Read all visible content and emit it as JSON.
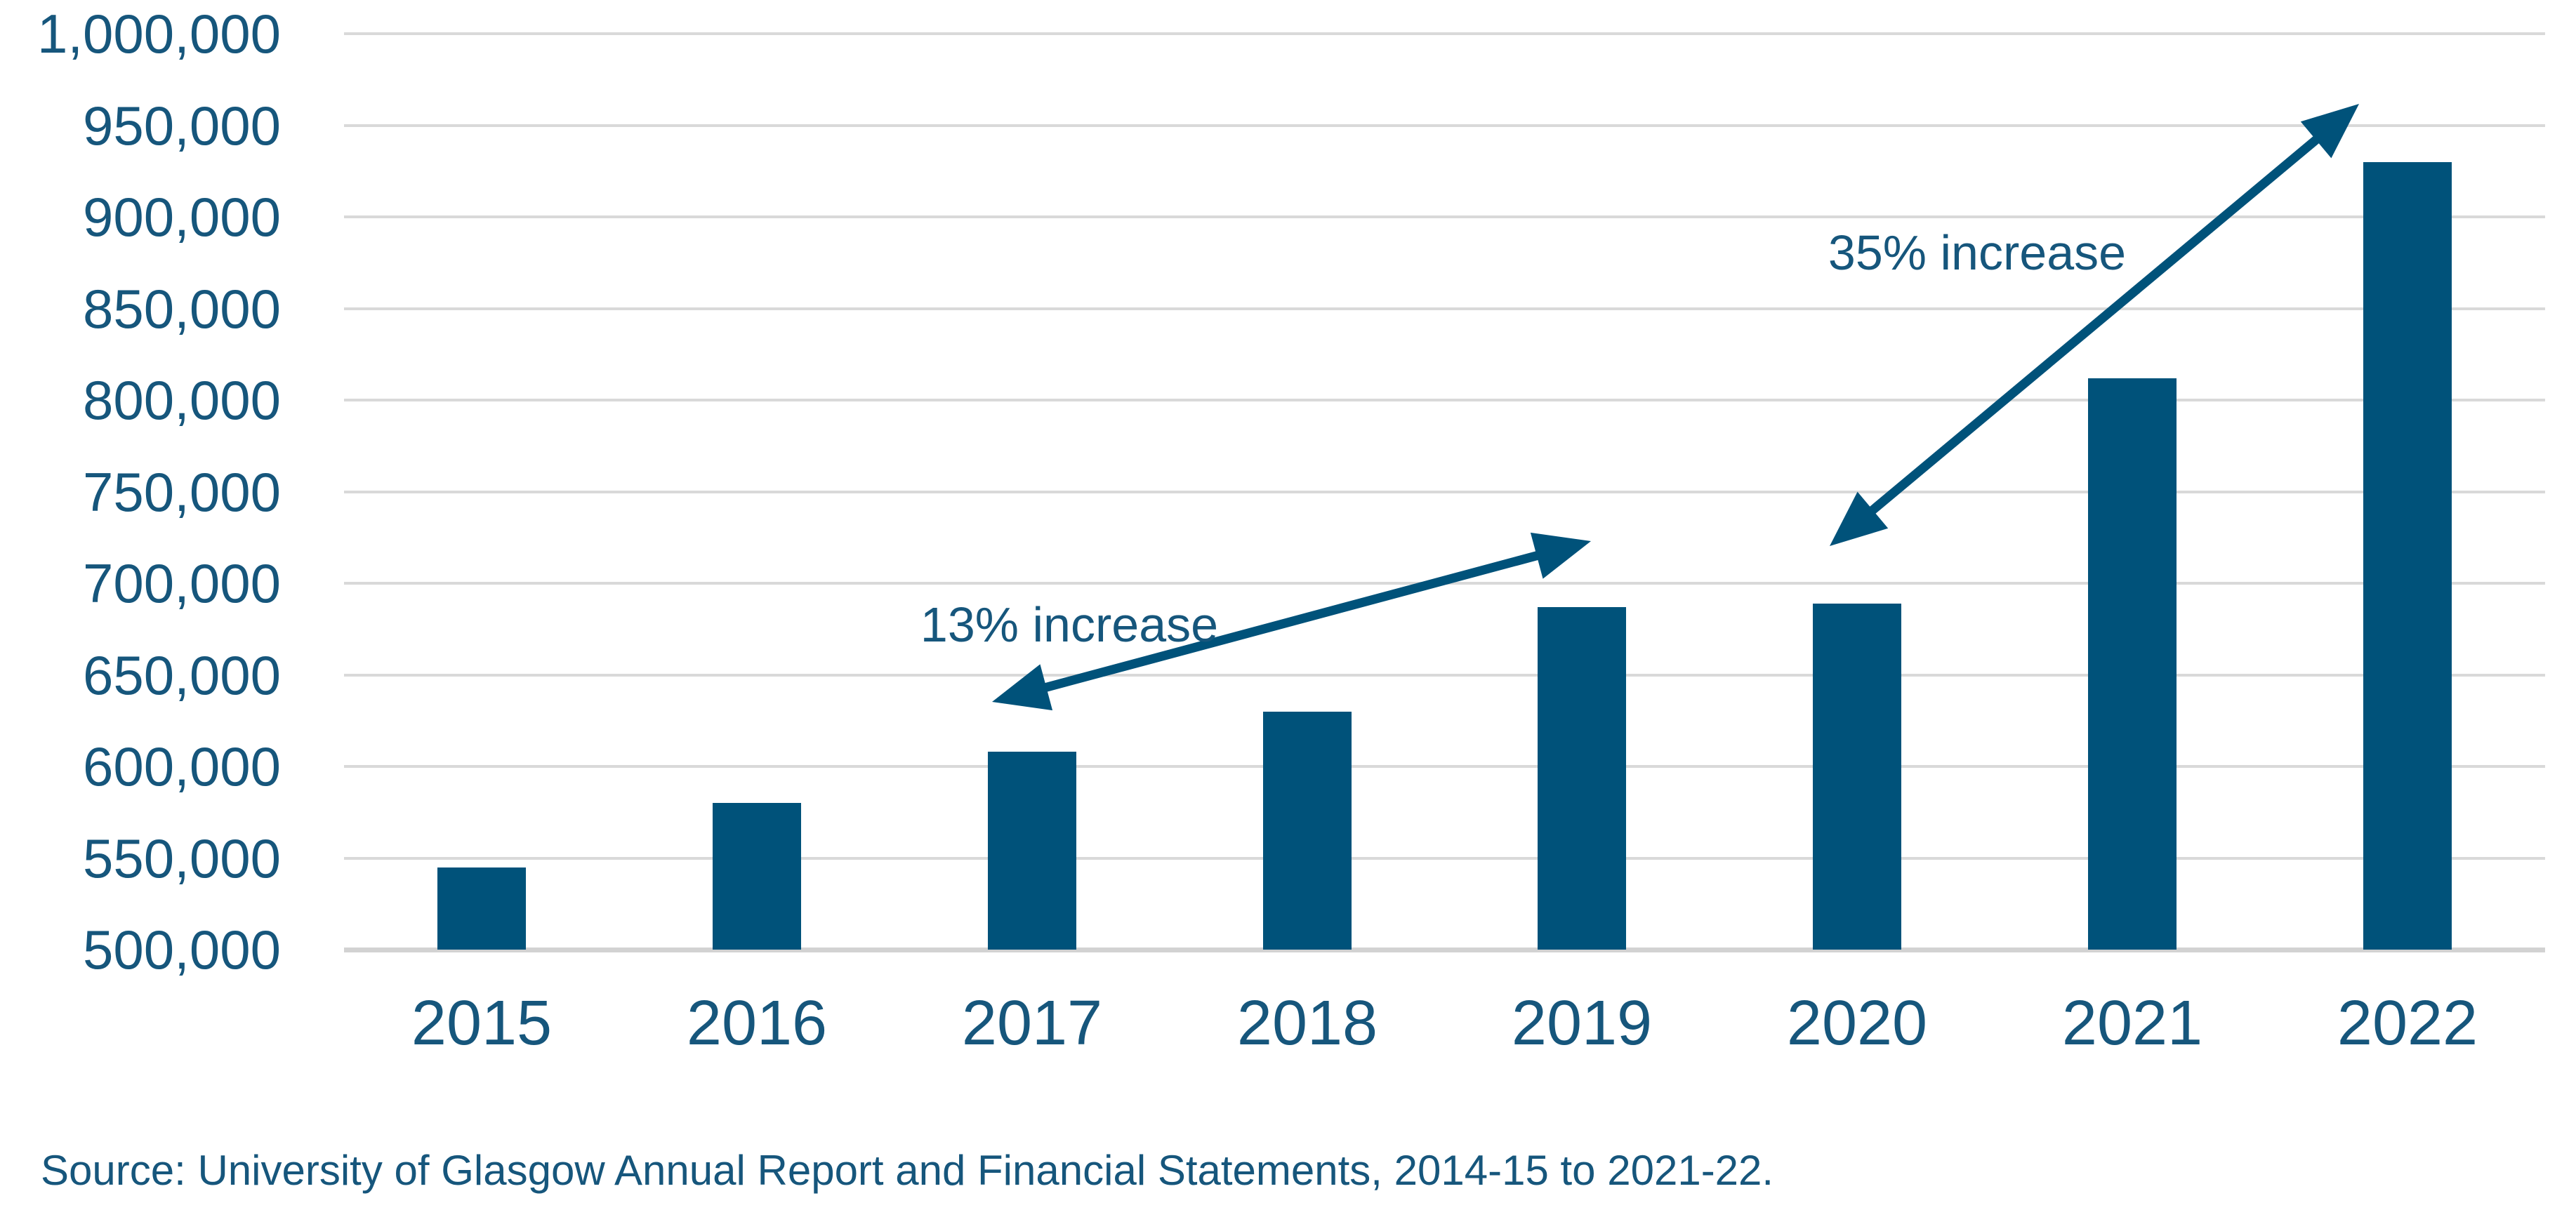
{
  "chart_data": {
    "type": "bar",
    "title": "",
    "categories": [
      "2015",
      "2016",
      "2017",
      "2018",
      "2019",
      "2020",
      "2021",
      "2022"
    ],
    "values": [
      545000,
      580000,
      608000,
      630000,
      687000,
      689000,
      812000,
      930000
    ],
    "xlabel": "",
    "ylabel": "",
    "ylim": [
      500000,
      1000000
    ],
    "ytick_step": 50000,
    "ytick_labels": [
      "500,000",
      "550,000",
      "600,000",
      "650,000",
      "700,000",
      "750,000",
      "800,000",
      "850,000",
      "900,000",
      "950,000",
      "1,000,000"
    ],
    "grid": true,
    "legend_position": "none",
    "annotations": [
      {
        "text": "13% increase",
        "from_category": "2017",
        "to_category": "2019",
        "from_xy": [
          1413,
          1000
        ],
        "to_xy": [
          2266,
          771
        ],
        "label_xy": [
          1523,
          890
        ]
      },
      {
        "text": "35% increase",
        "from_category": "2020",
        "to_category": "2022",
        "from_xy": [
          2606,
          778
        ],
        "to_xy": [
          3360,
          148
        ],
        "label_xy": [
          2816,
          360
        ]
      }
    ],
    "source": "Source: University of Glasgow Annual Report and Financial Statements, 2014-15 to 2021-22."
  },
  "colors": {
    "bar": "#00527A",
    "text": "#16567C",
    "grid": "#D9D9D9",
    "baseline": "#D2D2D2",
    "background": "#FFFFFF"
  }
}
